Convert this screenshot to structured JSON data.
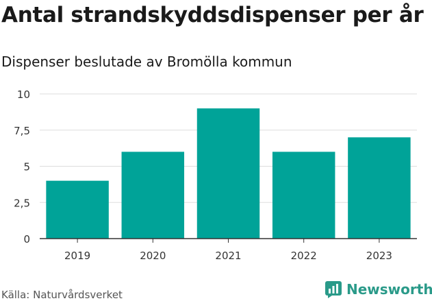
{
  "title": "Antal strandskyddsdispenser per år",
  "subtitle": "Dispenser beslutade av Bromölla kommun",
  "source": "Källa: Naturvårdsverket",
  "brand": "Newsworthy",
  "colors": {
    "bar": "#00a398",
    "grid": "#dddddd",
    "axis": "#333333",
    "brand": "#2a9a89"
  },
  "chart_data": {
    "type": "bar",
    "title": "Antal strandskyddsdispenser per år",
    "subtitle": "Dispenser beslutade av Bromölla kommun",
    "xlabel": "",
    "ylabel": "",
    "categories": [
      "2019",
      "2020",
      "2021",
      "2022",
      "2023"
    ],
    "values": [
      4,
      6,
      9,
      6,
      7
    ],
    "ylim": [
      0,
      10
    ],
    "yticks": [
      0,
      2.5,
      5,
      7.5,
      10
    ],
    "ytick_labels": [
      "0",
      "2,5",
      "5",
      "7,5",
      "10"
    ],
    "grid": true
  }
}
